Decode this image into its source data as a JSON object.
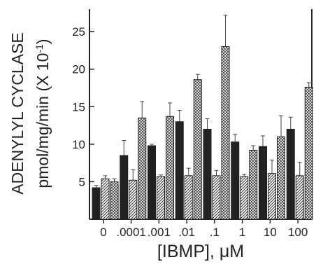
{
  "chart_data": {
    "type": "bar",
    "ylabel_line1": "ADENYLYL CYCLASE",
    "ylabel_line2": "pmol/mg/min (X 10",
    "ylabel_exp": "-1",
    "ylabel_close": ")",
    "xlabel": "[IBMP], μM",
    "categories": [
      "0",
      ".0001",
      ".001",
      ".01",
      ".1",
      "1",
      "10",
      "100"
    ],
    "yticks": [
      5,
      10,
      15,
      20,
      25
    ],
    "ylim": [
      0,
      28
    ],
    "grid": false,
    "series": [
      {
        "fill": "solid",
        "values": [
          4.2,
          8.5,
          9.8,
          13.0,
          12.0,
          10.3,
          9.7,
          12.0
        ],
        "errors": [
          0.3,
          2.0,
          0.2,
          1.5,
          1.4,
          1.0,
          1.4,
          1.6
        ]
      },
      {
        "fill": "hatched",
        "values": [
          5.4,
          5.2,
          5.7,
          5.8,
          5.8,
          5.7,
          6.1,
          5.8
        ],
        "errors": [
          0.4,
          1.4,
          0.2,
          1.0,
          0.7,
          0.3,
          1.8,
          1.8
        ]
      },
      {
        "fill": "crosshatched",
        "values": [
          5.0,
          13.5,
          13.7,
          18.6,
          23.0,
          9.2,
          11.0,
          17.6
        ],
        "errors": [
          0.4,
          2.2,
          1.8,
          0.7,
          4.2,
          0.6,
          2.8,
          0.6
        ]
      }
    ]
  }
}
